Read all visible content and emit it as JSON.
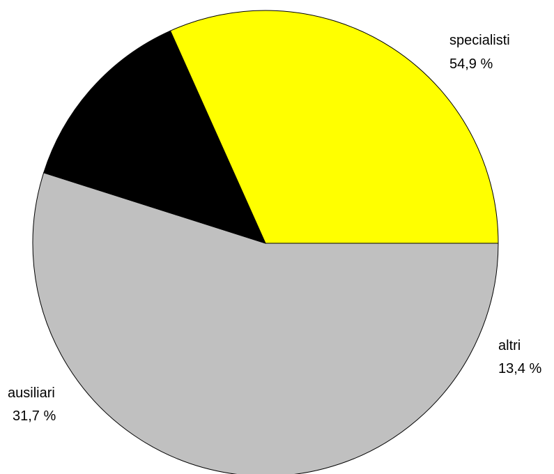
{
  "chart_data": {
    "type": "pie",
    "slices": [
      {
        "name": "specialisti",
        "value": 54.9,
        "label": "54,9 %",
        "color": "#C0C0C0"
      },
      {
        "name": "altri",
        "value": 13.4,
        "label": "13,4 %",
        "color": "#000000"
      },
      {
        "name": "ausiliari",
        "value": 31.7,
        "label": "31,7 %",
        "color": "#FFFF00"
      }
    ],
    "start_angle_deg": 0,
    "direction": "clockwise",
    "outline_color": "#000000",
    "legend": "none"
  }
}
